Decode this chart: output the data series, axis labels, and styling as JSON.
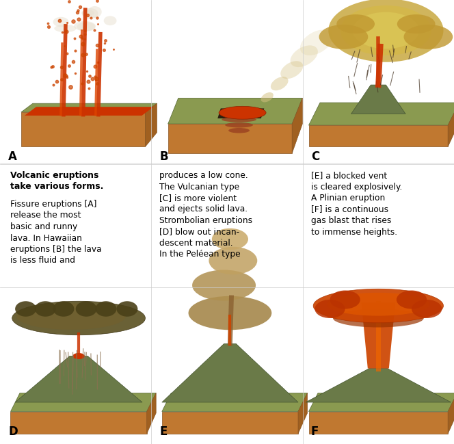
{
  "bg_color": "#ffffff",
  "labels": [
    "A",
    "B",
    "C",
    "D",
    "E",
    "F"
  ],
  "text_col1_bold": "Volcanic eruptions\ntake various forms.",
  "text_col1_normal": "Fissure eruptions [A]\nrelease the most\nbasic and runny\nlava. In Hawaiian\neruptions [B] the lava\nis less fluid and",
  "text_col2": "produces a low cone.\nThe Vulcanian type\n[C] is more violent\nand ejects solid lava.\nStrombolian eruptions\n[D] blow out incan-\ndescent material.\nIn the Peléean type",
  "text_col3": "[E] a blocked vent\nis cleared explosively.\nA Plinian eruption\n[F] is a continuous\ngas blast that rises\nto immense heights.",
  "ground_brown": "#c8783a",
  "ground_green": "#7a8a4a",
  "lava_red": "#cc3300",
  "smoke_yellow": "#d4b060",
  "smoke_brown": "#806030",
  "smoke_orange": "#cc4400"
}
